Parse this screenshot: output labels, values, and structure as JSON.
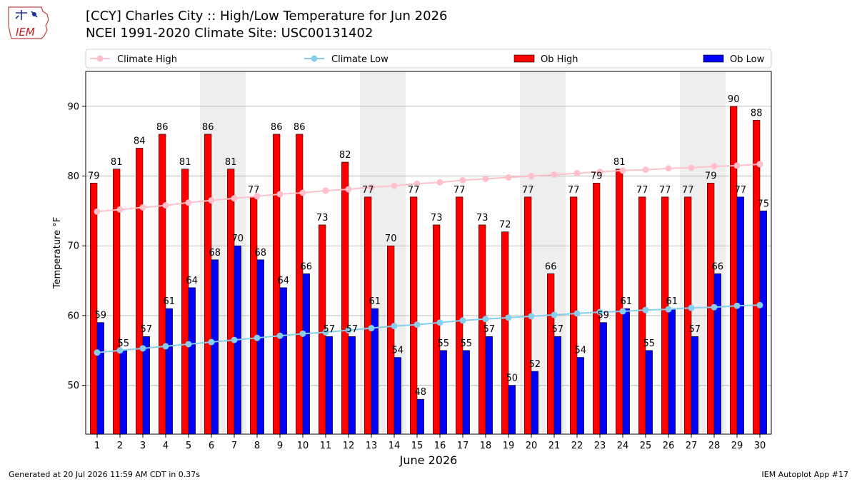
{
  "header": {
    "title_line1": "[CCY] Charles City :: High/Low Temperature for Jun 2026",
    "title_line2": "NCEI 1991-2020 Climate Site: USC00131402",
    "logo_text": "IEM"
  },
  "footer": {
    "generated": "Generated at 20 Jul 2026 11:59 AM CDT in 0.37s",
    "app": "IEM Autoplot App #17"
  },
  "colors": {
    "ob_high": "#ff0000",
    "ob_low": "#0000ff",
    "climate_high": "#ffc0cb",
    "climate_low": "#87ceeb",
    "weekend_band": "#eeeeee",
    "grid": "#b0b0b0"
  },
  "chart_data": {
    "type": "bar",
    "xlabel": "June 2026",
    "ylabel": "Temperature °F",
    "ylim": [
      43,
      95
    ],
    "yticks": [
      50,
      60,
      70,
      80,
      90
    ],
    "grid": "horizontal",
    "legend_position": "top",
    "x": [
      1,
      2,
      3,
      4,
      5,
      6,
      7,
      8,
      9,
      10,
      11,
      12,
      13,
      14,
      15,
      16,
      17,
      18,
      19,
      20,
      21,
      22,
      23,
      24,
      25,
      26,
      27,
      28,
      29,
      30
    ],
    "shaded_days": [
      6,
      7,
      13,
      14,
      20,
      21,
      27,
      28
    ],
    "series": [
      {
        "name": "Climate High",
        "kind": "line",
        "values": [
          74.9,
          75.2,
          75.5,
          75.8,
          76.2,
          76.5,
          76.8,
          77.1,
          77.4,
          77.6,
          77.9,
          78.1,
          78.4,
          78.6,
          78.9,
          79.1,
          79.4,
          79.6,
          79.8,
          80.0,
          80.2,
          80.4,
          80.6,
          80.8,
          80.9,
          81.1,
          81.2,
          81.4,
          81.5,
          81.7
        ]
      },
      {
        "name": "Climate Low",
        "kind": "line",
        "values": [
          54.7,
          55.0,
          55.3,
          55.6,
          55.9,
          56.2,
          56.5,
          56.8,
          57.1,
          57.4,
          57.6,
          57.9,
          58.2,
          58.5,
          58.7,
          59.0,
          59.3,
          59.5,
          59.7,
          59.9,
          60.1,
          60.3,
          60.5,
          60.6,
          60.8,
          60.9,
          61.1,
          61.2,
          61.4,
          61.5
        ]
      },
      {
        "name": "Ob High",
        "kind": "bar",
        "values": [
          79,
          81,
          84,
          86,
          81,
          86,
          81,
          77,
          86,
          86,
          73,
          82,
          77,
          70,
          77,
          73,
          77,
          73,
          72,
          77,
          66,
          77,
          79,
          81,
          77,
          77,
          77,
          79,
          90,
          88
        ]
      },
      {
        "name": "Ob Low",
        "kind": "bar",
        "values": [
          59,
          55,
          57,
          61,
          64,
          68,
          70,
          68,
          64,
          66,
          57,
          57,
          61,
          54,
          48,
          55,
          55,
          57,
          50,
          52,
          57,
          54,
          59,
          61,
          55,
          61,
          57,
          66,
          77,
          75
        ]
      }
    ]
  }
}
